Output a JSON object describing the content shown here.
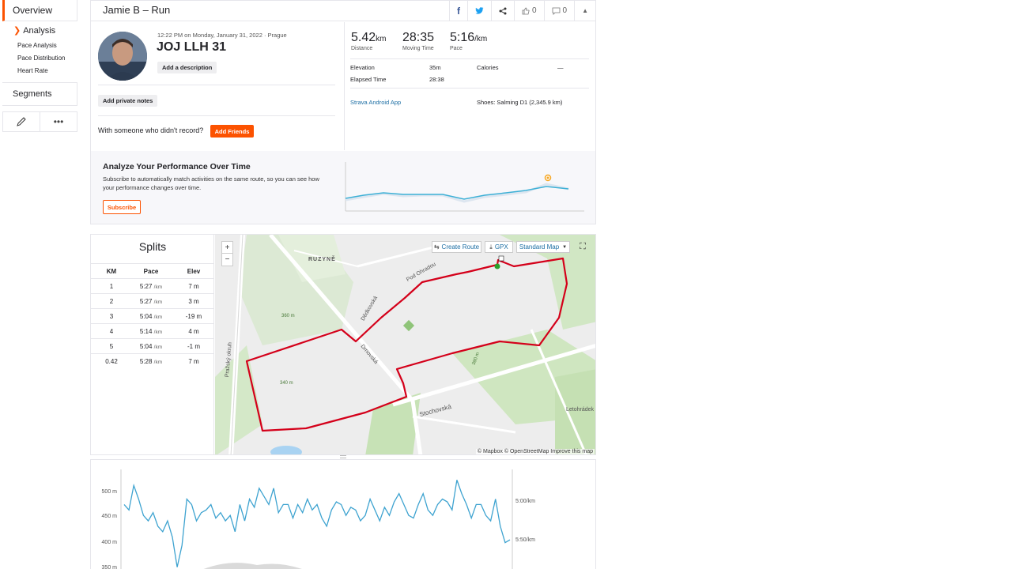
{
  "sidebar": {
    "overview": "Overview",
    "analysis": "Analysis",
    "sub_items": [
      "Pace Analysis",
      "Pace Distribution",
      "Heart Rate"
    ],
    "segments": "Segments"
  },
  "header": {
    "title": "Jamie B – Run",
    "kudos_count": "0",
    "comment_count": "0"
  },
  "activity": {
    "date_line": "12:22 PM on Monday, January 31, 2022 · Prague",
    "name": "JOJ LLH 31",
    "add_description": "Add a description",
    "add_private_notes": "Add private notes",
    "with_someone": "With someone who didn't record?",
    "add_friends": "Add Friends"
  },
  "stats": {
    "distance_value": "5.42",
    "distance_unit": "km",
    "distance_label": "Distance",
    "moving_time_value": "28:35",
    "moving_time_label": "Moving Time",
    "pace_value": "5:16",
    "pace_unit": "/km",
    "pace_label": "Pace",
    "elevation_label": "Elevation",
    "elevation_value": "35m",
    "calories_label": "Calories",
    "calories_value": "—",
    "elapsed_label": "Elapsed Time",
    "elapsed_value": "28:38",
    "device": "Strava Android App",
    "shoes": "Shoes: Salming D1 (2,345.9 km)"
  },
  "analyze": {
    "title": "Analyze Your Performance Over Time",
    "description": "Subscribe to automatically match activities on the same route, so you can see how your performance changes over time.",
    "subscribe": "Subscribe"
  },
  "splits": {
    "title": "Splits",
    "headers": [
      "KM",
      "Pace",
      "Elev"
    ],
    "rows": [
      {
        "km": "1",
        "pace": "5:27",
        "unit": "/km",
        "elev": "7 m"
      },
      {
        "km": "2",
        "pace": "5:27",
        "unit": "/km",
        "elev": "3 m"
      },
      {
        "km": "3",
        "pace": "5:04",
        "unit": "/km",
        "elev": "-19 m"
      },
      {
        "km": "4",
        "pace": "5:14",
        "unit": "/km",
        "elev": "4 m"
      },
      {
        "km": "5",
        "pace": "5:04",
        "unit": "/km",
        "elev": "-1 m"
      },
      {
        "km": "0.42",
        "pace": "5:28",
        "unit": "/km",
        "elev": "7 m"
      }
    ]
  },
  "map": {
    "create_route": "Create Route",
    "gpx": "GPX",
    "map_style": "Standard Map",
    "attribution": "© Mapbox © OpenStreetMap Improve this map",
    "labels": [
      "RUZYNĚ",
      "Pražský okruh",
      "Stochovská",
      "Drnovská",
      "Letohrádek",
      "360 m",
      "340 m",
      "380 m",
      "Pod Ohradou",
      "Dědkovská"
    ]
  },
  "chart_data": {
    "type": "line",
    "left_ticks": [
      "500 m",
      "450 m",
      "400 m",
      "350 m"
    ],
    "right_ticks": [
      "5:00/km",
      "5:50/km"
    ],
    "x": [
      0,
      1,
      2,
      3,
      4,
      5,
      6,
      7,
      8,
      9,
      10,
      11,
      12,
      13,
      14,
      15,
      16,
      17,
      18,
      19,
      20,
      21,
      22,
      23,
      24,
      25,
      26,
      27,
      28,
      29,
      30,
      31,
      32,
      33,
      34,
      35,
      36,
      37,
      38,
      39,
      40,
      41,
      42,
      43,
      44,
      45,
      46,
      47,
      48,
      49,
      50,
      51,
      52,
      53,
      54,
      55,
      56,
      57,
      58,
      59,
      60,
      61,
      62,
      63,
      64,
      65,
      66,
      67,
      68,
      69,
      70,
      71,
      72,
      73,
      74,
      75,
      76,
      77,
      78,
      79,
      80
    ],
    "pace_series": [
      470,
      460,
      505,
      480,
      450,
      440,
      455,
      430,
      420,
      440,
      410,
      355,
      395,
      480,
      470,
      440,
      455,
      460,
      470,
      445,
      455,
      440,
      450,
      420,
      470,
      440,
      480,
      465,
      500,
      485,
      470,
      500,
      455,
      470,
      470,
      445,
      470,
      455,
      480,
      460,
      470,
      445,
      430,
      460,
      475,
      470,
      450,
      465,
      460,
      440,
      450,
      480,
      460,
      440,
      465,
      450,
      475,
      490,
      470,
      450,
      445,
      470,
      490,
      460,
      450,
      470,
      480,
      475,
      460,
      515,
      490,
      470,
      445,
      470,
      470,
      450,
      440,
      480,
      430,
      400,
      405
    ]
  }
}
